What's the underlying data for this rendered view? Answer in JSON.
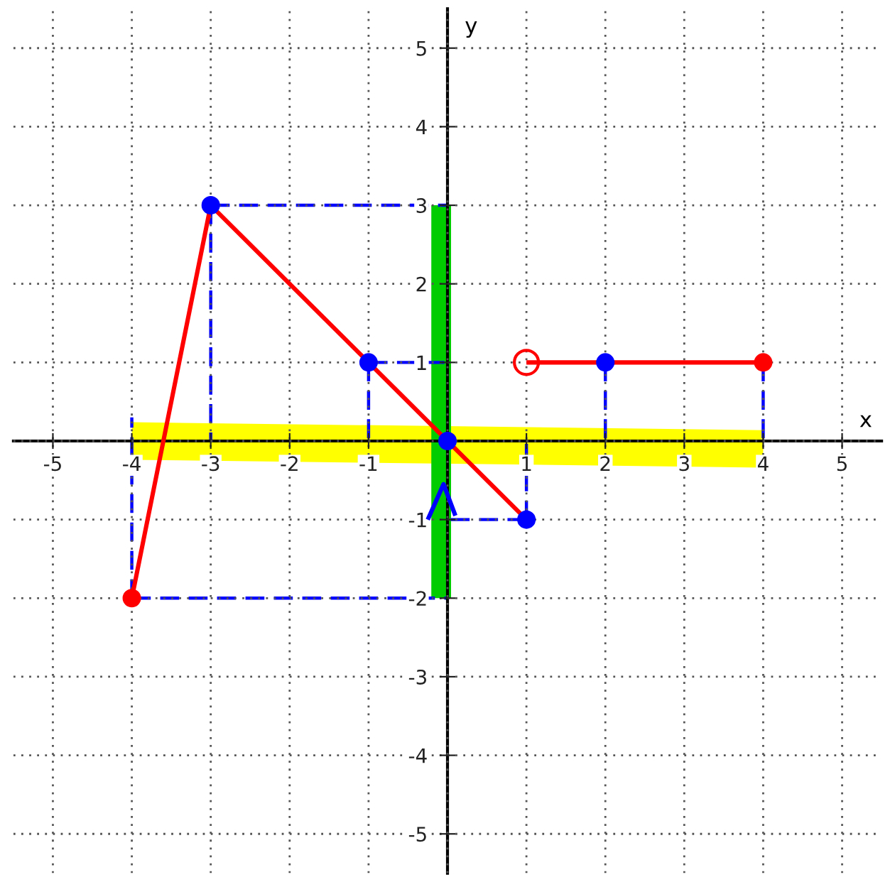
{
  "chart_data": {
    "type": "line",
    "xlabel": "x",
    "ylabel": "y",
    "xlim": [
      -5.5,
      5.5
    ],
    "ylim": [
      -5.5,
      5.5
    ],
    "xticks": [
      -5,
      -4,
      -3,
      -2,
      -1,
      {
        "value": 0,
        "label": null
      },
      1,
      2,
      3,
      4,
      5
    ],
    "yticks": [
      -5,
      -4,
      -3,
      -2,
      -1,
      {
        "value": 0,
        "label": null
      },
      1,
      2,
      3,
      4,
      5
    ],
    "grid": true,
    "series": [
      {
        "color": "#ffff00",
        "line_style": "solid",
        "x": [
          -4,
          4
        ],
        "values": [
          0,
          -0.1
        ]
      },
      {
        "color": "#00cc00",
        "line_style": "solid",
        "x": [
          -0.08,
          -0.08
        ],
        "values": [
          -2,
          3
        ]
      },
      {
        "color": "#0000ff",
        "line_style": "dashed",
        "x": [
          -4,
          0,
          null,
          -4,
          -4,
          null,
          -3,
          0,
          null,
          -3,
          -3,
          null,
          -1,
          0,
          null,
          -1,
          -1,
          null,
          1,
          0,
          null,
          1,
          1,
          null,
          2,
          2,
          null,
          4,
          4
        ],
        "values": [
          -2,
          -2,
          null,
          -2,
          0.3,
          null,
          3,
          3,
          null,
          3,
          0,
          null,
          1,
          1,
          null,
          1,
          0,
          null,
          -1,
          -1,
          null,
          -1,
          0,
          null,
          1,
          0,
          null,
          1,
          0
        ]
      },
      {
        "color": "#0000ff",
        "line_style": "solid",
        "x": [
          -0.25,
          -0.05,
          0.1
        ],
        "values": [
          -1,
          -0.55,
          -0.95
        ]
      },
      {
        "color": "#ff0000",
        "line_style": "solid",
        "x": [
          -4,
          -3,
          1
        ],
        "values": [
          -2,
          3,
          -1
        ]
      },
      {
        "color": "#ff0000",
        "line_style": "solid",
        "x": [
          1,
          4
        ],
        "values": [
          1,
          1
        ]
      },
      {
        "type": "scatter",
        "color": "#0000ff",
        "marker": "circle",
        "x": [
          -3,
          -1,
          0,
          1,
          2
        ],
        "values": [
          3,
          1,
          0,
          -1,
          1
        ]
      },
      {
        "type": "scatter",
        "color": "#ff0000",
        "marker": "circle",
        "x": [
          -4,
          4
        ],
        "values": [
          -2,
          1
        ]
      },
      {
        "type": "scatter",
        "color": "#ff0000",
        "marker": "circle",
        "x": [
          1
        ],
        "values": [
          1
        ]
      }
    ]
  }
}
